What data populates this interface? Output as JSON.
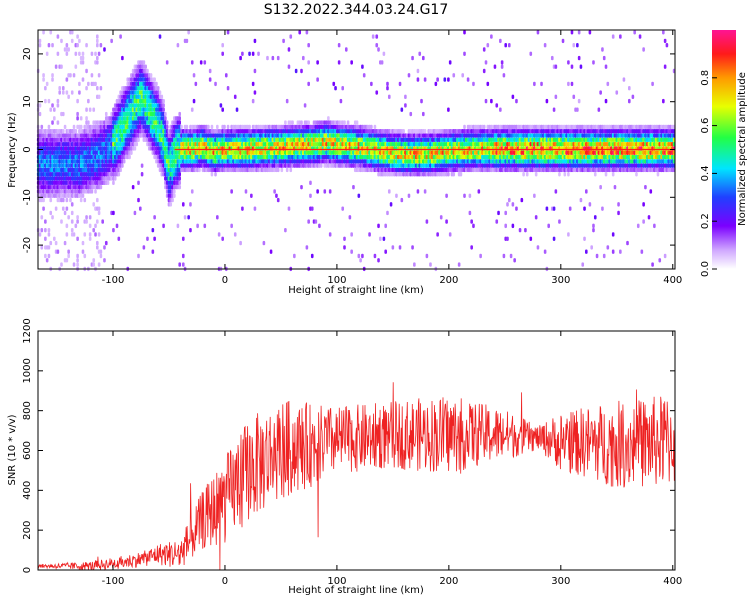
{
  "title": "S132.2022.344.03.24.G17",
  "colors": {
    "spectrum_low": "#7b00ff",
    "spectrum_mid": "#00e5ff",
    "spectrum_high": "#ff1a1a",
    "snr_line": "#ee2222"
  },
  "colorbar": {
    "label": "Normalized spectral amplitude",
    "ticks": [
      "0.0",
      "0.2",
      "0.4",
      "0.6",
      "0.8"
    ],
    "tick_values": [
      0.0,
      0.2,
      0.4,
      0.6,
      0.8
    ],
    "range": [
      0,
      1
    ]
  },
  "chart_data": [
    {
      "type": "heatmap",
      "xlabel": "Height of straight line (km)",
      "ylabel": "Frequency (Hz)",
      "xlim": [
        -167,
        402
      ],
      "ylim": [
        -25,
        25
      ],
      "x_ticks": [
        -100,
        0,
        100,
        200,
        300,
        400
      ],
      "x_tick_labels": [
        "-100",
        "0",
        "100",
        "200",
        "300",
        "400"
      ],
      "y_ticks": [
        -20,
        -10,
        0,
        10,
        20
      ],
      "y_tick_labels": [
        "-20",
        "-10",
        "0",
        "10",
        "20"
      ],
      "ridge": {
        "x": [
          -140,
          -130,
          -120,
          -110,
          -100,
          -90,
          -80,
          -75,
          -70,
          -65,
          -60,
          -55,
          -50,
          -45,
          -40,
          -30,
          -20,
          -10,
          0,
          20,
          50,
          80,
          90,
          100,
          120,
          140,
          160,
          180,
          200,
          220,
          250,
          300,
          350,
          400
        ],
        "y": [
          -3,
          -3,
          -2,
          -1,
          1,
          5,
          9,
          11,
          9,
          7,
          5,
          2,
          -4,
          -1,
          0,
          0,
          0.5,
          -0.5,
          0,
          0,
          0.5,
          1,
          1.5,
          1,
          0.5,
          -0.5,
          -1,
          -1,
          -0.5,
          0,
          0,
          0,
          0,
          0
        ]
      }
    },
    {
      "type": "line",
      "xlabel": "Height of straight line (km)",
      "ylabel": "SNR (10 * v/v)",
      "xlim": [
        -167,
        402
      ],
      "ylim": [
        0,
        1200
      ],
      "x_ticks": [
        -100,
        0,
        100,
        200,
        300,
        400
      ],
      "x_tick_labels": [
        "-100",
        "0",
        "100",
        "200",
        "300",
        "400"
      ],
      "y_ticks": [
        0,
        200,
        400,
        600,
        800,
        1000,
        1200
      ],
      "y_tick_labels": [
        "0",
        "200",
        "400",
        "600",
        "800",
        "1000",
        "1200"
      ],
      "mean_envelope": {
        "x": [
          -167,
          -120,
          -90,
          -70,
          -60,
          -40,
          -20,
          0,
          20,
          50,
          100,
          150,
          200,
          250,
          300,
          350,
          402
        ],
        "y": [
          20,
          20,
          40,
          60,
          80,
          80,
          250,
          350,
          500,
          600,
          650,
          680,
          680,
          680,
          650,
          630,
          650
        ]
      },
      "spread_envelope": {
        "x": [
          -167,
          -70,
          -40,
          -20,
          0,
          20,
          50,
          100,
          150,
          200,
          250,
          280,
          300,
          350,
          402
        ],
        "y": [
          8,
          40,
          80,
          150,
          220,
          260,
          260,
          170,
          170,
          200,
          130,
          60,
          150,
          220,
          240
        ]
      }
    }
  ]
}
